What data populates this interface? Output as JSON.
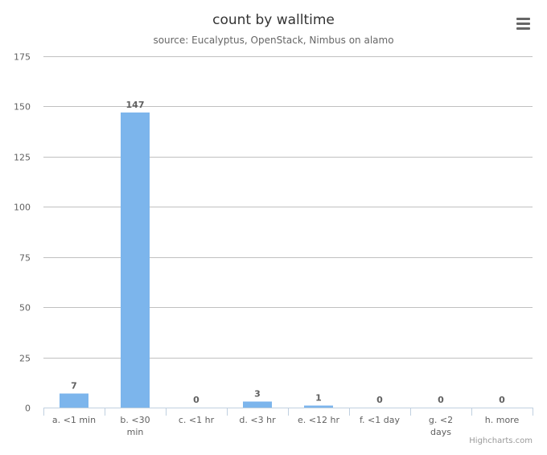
{
  "chart_data": {
    "type": "bar",
    "title": "count by walltime",
    "subtitle": "source: Eucalyptus, OpenStack, Nimbus on alamo",
    "categories": [
      "a. <1 min",
      "b. <30 min",
      "c. <1 hr",
      "d. <3 hr",
      "e. <12 hr",
      "f. <1 day",
      "g. <2 days",
      "h. more"
    ],
    "category_lines": [
      [
        "a. <1 min"
      ],
      [
        "b. <30",
        "min"
      ],
      [
        "c. <1 hr"
      ],
      [
        "d. <3 hr"
      ],
      [
        "e. <12 hr"
      ],
      [
        "f. <1 day"
      ],
      [
        "g. <2",
        "days"
      ],
      [
        "h. more"
      ]
    ],
    "values": [
      7,
      147,
      0,
      3,
      1,
      0,
      0,
      0
    ],
    "ylim": [
      0,
      175
    ],
    "yticks": [
      0,
      25,
      50,
      75,
      100,
      125,
      150,
      175
    ],
    "xlabel": "",
    "ylabel": "",
    "grid": true,
    "legend": false,
    "bar_color": "#7cb5ec",
    "data_labels": true
  },
  "credits": "Highcharts.com",
  "menu_icon": "hamburger-menu-icon"
}
